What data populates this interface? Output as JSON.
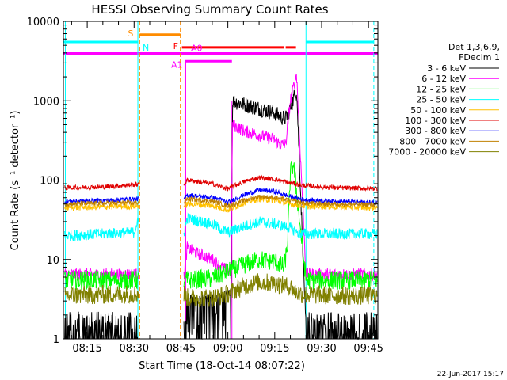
{
  "chart_data": {
    "type": "line",
    "title": "HESSI Observing Summary Count Rates",
    "xlabel": "Start Time (18-Oct-14 08:07:22)",
    "ylabel": "Count Rate (s⁻¹ detector⁻¹)",
    "y_scale": "log",
    "ylim": [
      1,
      10000
    ],
    "xlim": [
      487.37,
      588.0
    ],
    "x_ticks": [
      {
        "label": "08:15",
        "value": 495
      },
      {
        "label": "08:30",
        "value": 510
      },
      {
        "label": "08:45",
        "value": 525
      },
      {
        "label": "09:00",
        "value": 540
      },
      {
        "label": "09:15",
        "value": 555
      },
      {
        "label": "09:30",
        "value": 570
      },
      {
        "label": "09:45",
        "value": 585
      }
    ],
    "y_ticks": [
      {
        "label": "1",
        "value": 1
      },
      {
        "label": "10",
        "value": 10
      },
      {
        "label": "100",
        "value": 100
      },
      {
        "label": "1000",
        "value": 1000
      },
      {
        "label": "10000",
        "value": 10000
      }
    ],
    "legend_position": "right",
    "legend_header": [
      "Det 1,3,6,9,",
      "FDecim 1"
    ],
    "timestamp": "22-Jun-2017 15:17",
    "series": [
      {
        "name": "3 - 6 keV",
        "color": "#000000",
        "x": [
          488,
          495,
          503,
          511,
          514,
          520,
          526,
          527,
          530,
          535,
          538,
          541,
          541.5,
          545,
          550,
          555,
          557,
          558.5,
          560,
          562,
          565,
          570,
          575,
          580,
          588
        ],
        "y": [
          1.1,
          1.4,
          1.2,
          1.3,
          1.2,
          1.1,
          1.3,
          3.2,
          2.8,
          3.0,
          3.2,
          3.5,
          1000,
          900,
          800,
          700,
          620,
          600,
          800,
          1400,
          1.3,
          1.4,
          1.3,
          1.2,
          1.3
        ]
      },
      {
        "name": "6 - 12 keV",
        "color": "#ff00ff",
        "x": [
          488,
          500,
          511,
          514,
          526,
          527,
          530,
          535,
          538,
          541,
          541.5,
          545,
          550,
          555,
          557,
          558.5,
          560,
          562,
          565,
          575,
          588
        ],
        "y": [
          6.5,
          6.5,
          6.5,
          6.5,
          6.5,
          14,
          12,
          10,
          8,
          7,
          500,
          420,
          370,
          320,
          280,
          280,
          1000,
          2200,
          6.5,
          6.5,
          6.5
        ]
      },
      {
        "name": "12 - 25 keV",
        "color": "#00ff00",
        "x": [
          488,
          500,
          511,
          514,
          526,
          527,
          535,
          545,
          550,
          555,
          558,
          559,
          560,
          561,
          562,
          565,
          575,
          588
        ],
        "y": [
          5.5,
          5.5,
          5.5,
          5.5,
          5.5,
          5.5,
          5.8,
          8.5,
          10,
          9.5,
          8,
          14,
          120,
          160,
          70,
          5.5,
          5.5,
          5.5
        ]
      },
      {
        "name": "25 - 50 keV",
        "color": "#00ffff",
        "x": [
          488,
          500,
          510,
          511,
          514,
          526,
          527,
          535,
          538,
          540,
          545,
          550,
          555,
          560,
          562,
          565,
          575,
          588
        ],
        "y": [
          20,
          21,
          22,
          30,
          22,
          22,
          33,
          28,
          24,
          22,
          26,
          30,
          28,
          25,
          22,
          21,
          21,
          21
        ]
      },
      {
        "name": "50 - 100 keV",
        "color": "#ffc000",
        "x": [
          488,
          500,
          511,
          514,
          526,
          527,
          535,
          538,
          540,
          545,
          550,
          555,
          560,
          565,
          575,
          588
        ],
        "y": [
          45,
          46,
          47,
          47,
          47,
          50,
          48,
          44,
          42,
          52,
          58,
          56,
          50,
          47,
          46,
          45
        ]
      },
      {
        "name": "100 - 300 keV",
        "color": "#e00000",
        "x": [
          488,
          500,
          511,
          514,
          526,
          527,
          535,
          538,
          540,
          545,
          550,
          555,
          560,
          565,
          575,
          588
        ],
        "y": [
          80,
          82,
          88,
          88,
          88,
          100,
          90,
          82,
          78,
          95,
          108,
          102,
          92,
          85,
          80,
          78
        ]
      },
      {
        "name": "300 - 800 keV",
        "color": "#0000ff",
        "x": [
          488,
          500,
          511,
          514,
          526,
          527,
          535,
          538,
          540,
          545,
          550,
          555,
          560,
          565,
          575,
          588
        ],
        "y": [
          54,
          55,
          58,
          58,
          58,
          65,
          60,
          56,
          52,
          65,
          75,
          72,
          62,
          56,
          54,
          52
        ]
      },
      {
        "name": "800 - 7000 keV",
        "color": "#c08000",
        "x": [
          488,
          500,
          511,
          514,
          526,
          527,
          535,
          538,
          540,
          545,
          550,
          555,
          560,
          565,
          575,
          588
        ],
        "y": [
          50,
          51,
          52,
          52,
          52,
          58,
          54,
          50,
          47,
          55,
          62,
          60,
          55,
          51,
          50,
          49
        ]
      },
      {
        "name": "7000 - 20000 keV",
        "color": "#808000",
        "x": [
          488,
          500,
          511,
          514,
          526,
          527,
          535,
          538,
          540,
          545,
          550,
          555,
          560,
          562,
          565,
          575,
          588
        ],
        "y": [
          3.5,
          3.6,
          3.7,
          3.7,
          3.7,
          3.3,
          3.3,
          3.5,
          3.7,
          4.6,
          5.2,
          5.0,
          4.5,
          3.8,
          3.6,
          3.5,
          3.5
        ]
      }
    ],
    "gaps": [
      [
        511.6,
        525.9
      ]
    ],
    "vertical_markers": [
      {
        "x": 488.0,
        "color": "#00ffff",
        "style": "solid"
      },
      {
        "x": 511.2,
        "color": "#00ffff",
        "style": "solid"
      },
      {
        "x": 511.8,
        "color": "#ff8c00",
        "style": "dashed"
      },
      {
        "x": 524.8,
        "color": "#ff8c00",
        "style": "dashed"
      },
      {
        "x": 526.4,
        "color": "#ff00ff",
        "style": "solid"
      },
      {
        "x": 541.3,
        "color": "#ff00ff",
        "style": "solid"
      },
      {
        "x": 565.0,
        "color": "#00ffff",
        "style": "solid"
      },
      {
        "x": 586.7,
        "color": "#00ffff",
        "style": "dashed"
      }
    ],
    "flag_bars": [
      {
        "label": "N",
        "color": "#00ffff",
        "y": 5500,
        "segments": [
          [
            487.4,
            511.2
          ],
          [
            565.0,
            586.7
          ]
        ]
      },
      {
        "label": "S",
        "color": "#ff8c00",
        "y": 6800,
        "segments": [
          [
            511.8,
            524.8
          ]
        ]
      },
      {
        "label": "F",
        "color": "#ff0000",
        "y": 4700,
        "segments": [
          [
            525.3,
            558.0
          ],
          [
            558.5,
            561.8
          ]
        ]
      },
      {
        "label": "A0",
        "color": "#ff00ff",
        "y": 3950,
        "segments": [
          [
            487.4,
            588.0
          ]
        ]
      },
      {
        "label": "A1",
        "color": "#ff00ff",
        "y": 3150,
        "segments": [
          [
            526.4,
            541.3
          ]
        ]
      }
    ]
  }
}
